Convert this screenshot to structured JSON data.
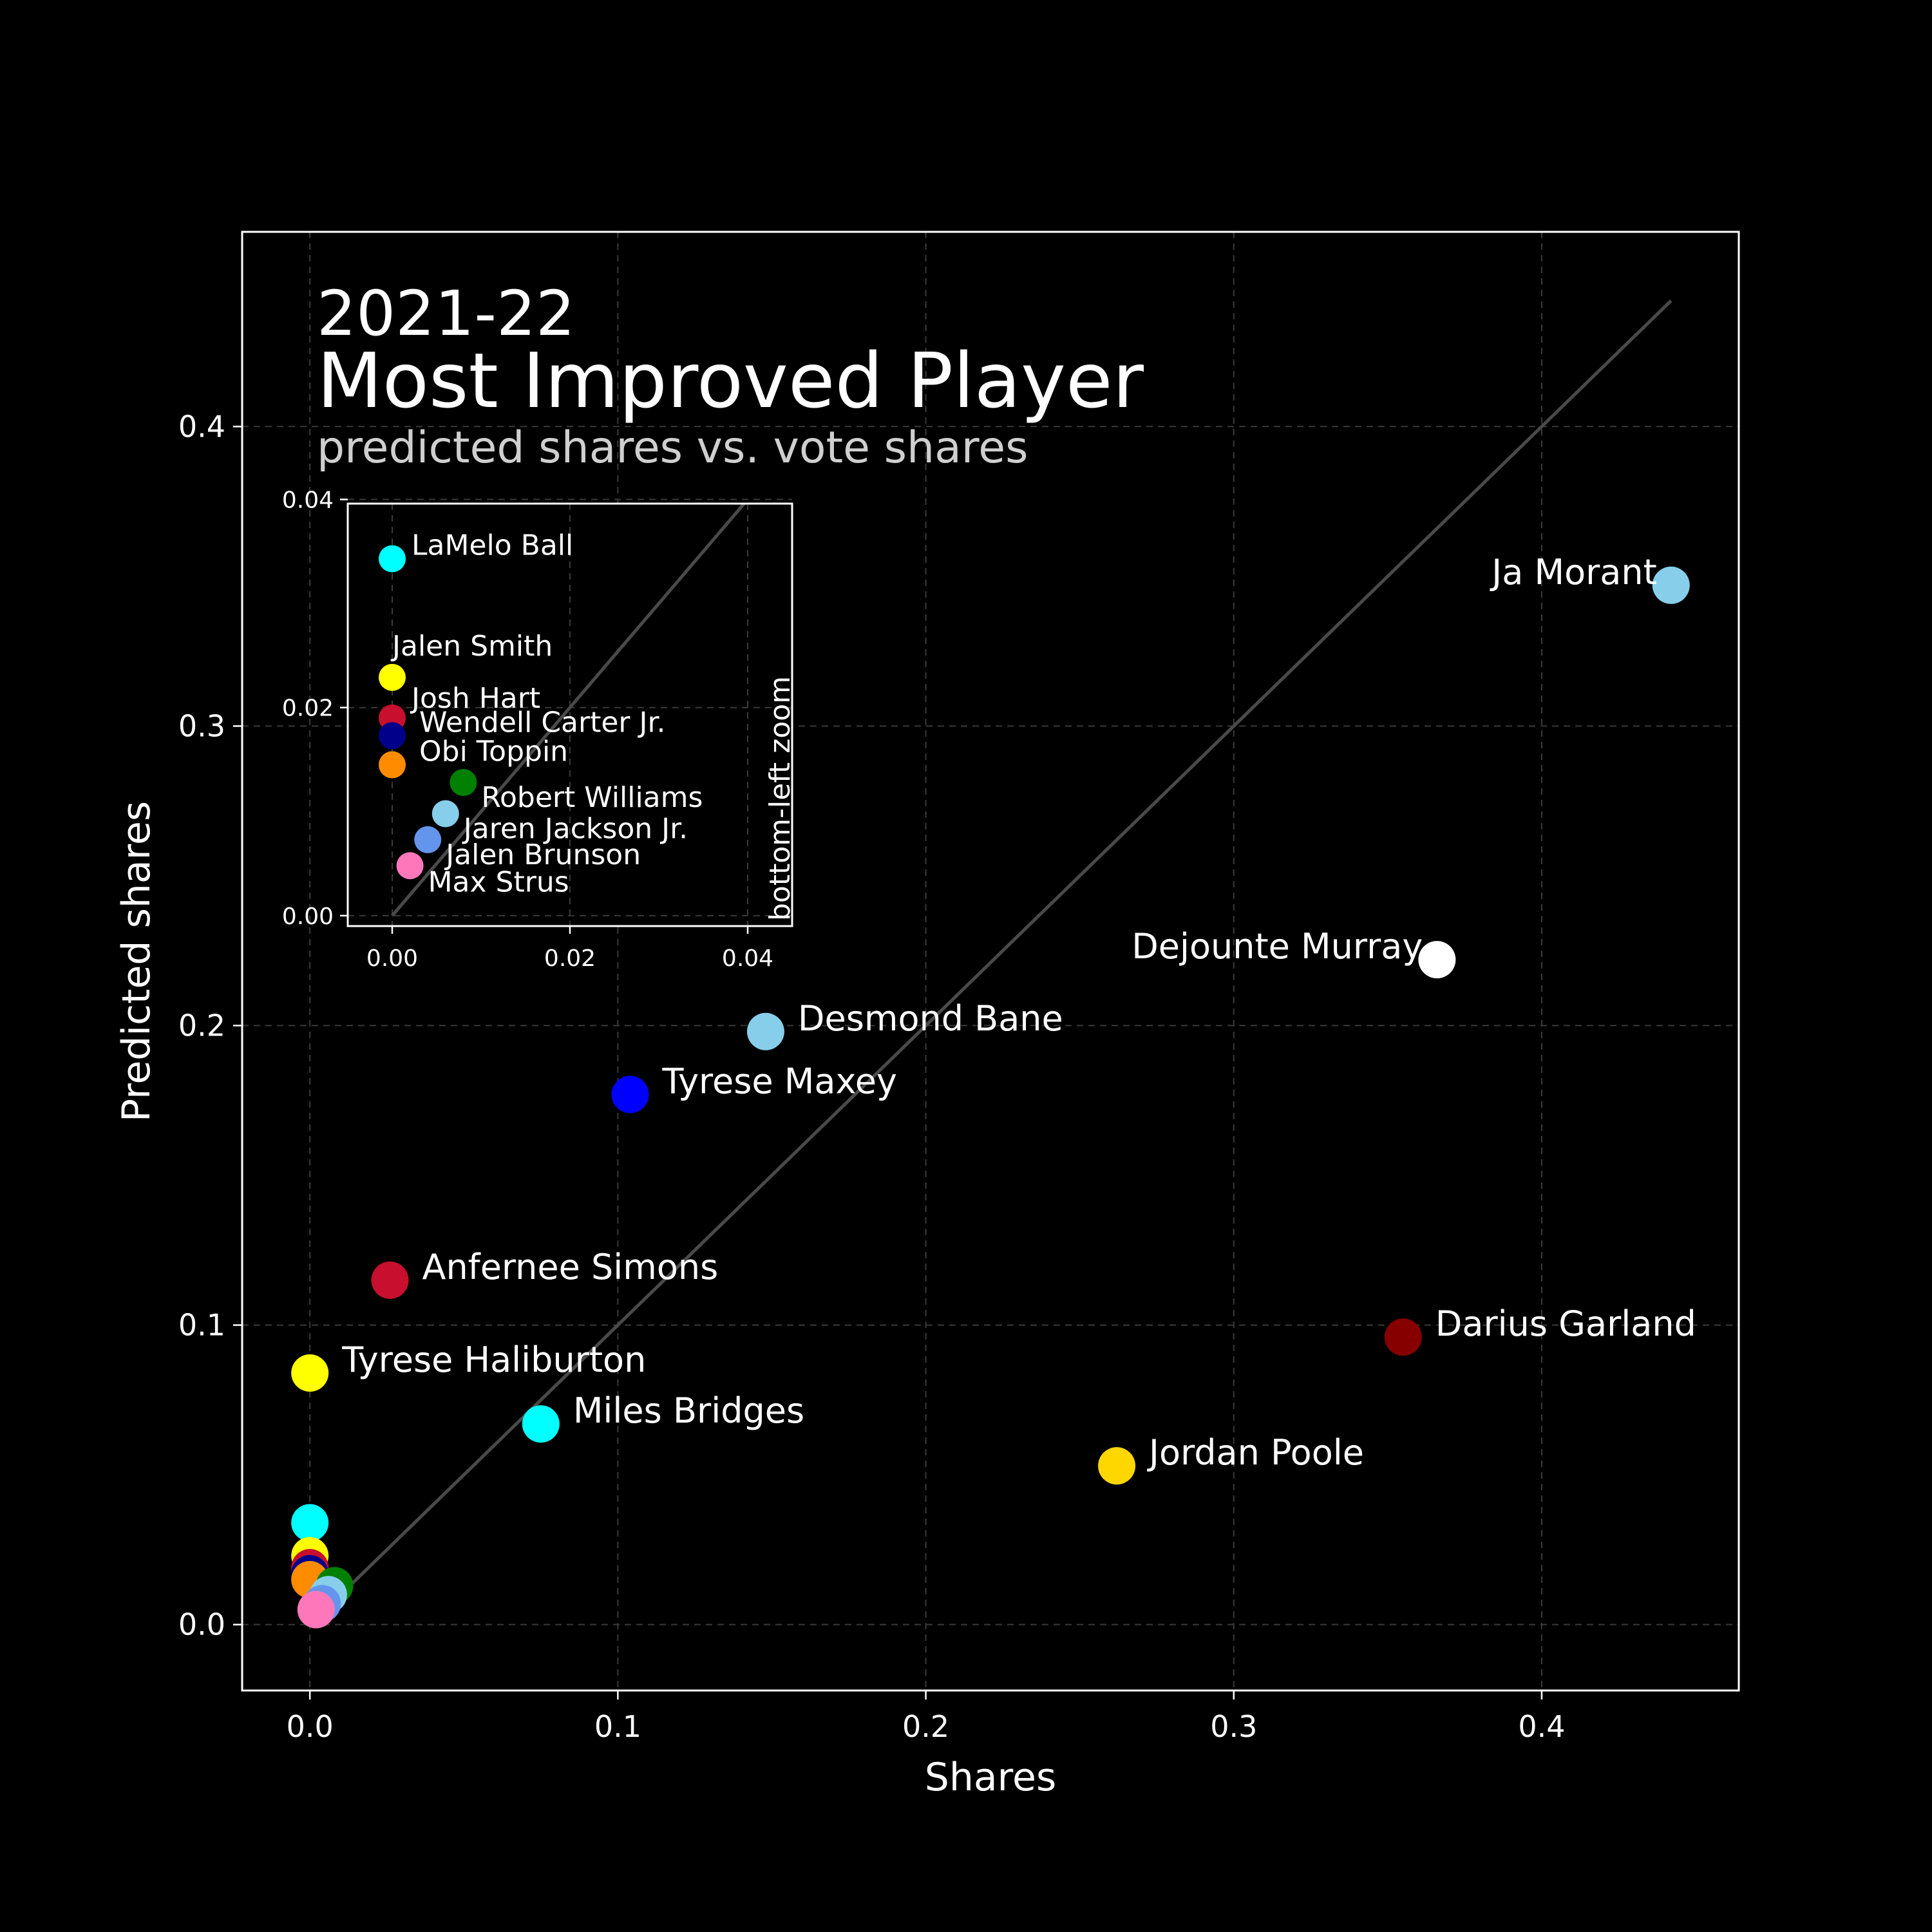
{
  "title": {
    "year": "2021-22",
    "main": "Most Improved Player",
    "subtitle": "predicted shares vs. vote shares"
  },
  "chart_data": [
    {
      "type": "scatter",
      "xlabel": "Shares",
      "ylabel": "Predicted shares",
      "xlim": [
        -0.022,
        0.464
      ],
      "ylim": [
        -0.022,
        0.465
      ],
      "x_ticks": [
        "0.0",
        "0.1",
        "0.2",
        "0.3",
        "0.4"
      ],
      "y_ticks": [
        "0.0",
        "0.1",
        "0.2",
        "0.3",
        "0.4"
      ],
      "grid": true,
      "reference_line": "y = x",
      "points": [
        {
          "name": "Ja Morant",
          "x": 0.442,
          "y": 0.347,
          "color": "#87CEEB",
          "label_side": "left"
        },
        {
          "name": "Dejounte Murray",
          "x": 0.366,
          "y": 0.222,
          "color": "#FFFFFF",
          "label_side": "left"
        },
        {
          "name": "Desmond Bane",
          "x": 0.148,
          "y": 0.198,
          "color": "#87CEEB",
          "label_side": "right"
        },
        {
          "name": "Tyrese Maxey",
          "x": 0.104,
          "y": 0.177,
          "color": "#0000FF",
          "label_side": "right"
        },
        {
          "name": "Anfernee Simons",
          "x": 0.026,
          "y": 0.115,
          "color": "#C8102E",
          "label_side": "right"
        },
        {
          "name": "Darius Garland",
          "x": 0.355,
          "y": 0.096,
          "color": "#860000",
          "label_side": "right"
        },
        {
          "name": "Tyrese Haliburton",
          "x": 0.0,
          "y": 0.084,
          "color": "#FFFF00",
          "label_side": "right"
        },
        {
          "name": "Miles Bridges",
          "x": 0.075,
          "y": 0.067,
          "color": "#00FFFF",
          "label_side": "right"
        },
        {
          "name": "Jordan Poole",
          "x": 0.262,
          "y": 0.053,
          "color": "#FFD700",
          "label_side": "right"
        },
        {
          "name": "LaMelo Ball",
          "x": 0.0,
          "y": 0.034,
          "color": "#00FFFF",
          "label_side": "none"
        },
        {
          "name": "Jalen Smith",
          "x": 0.0,
          "y": 0.023,
          "color": "#FFFF00",
          "label_side": "none"
        },
        {
          "name": "Josh Hart",
          "x": 0.0,
          "y": 0.019,
          "color": "#C8102E",
          "label_side": "none"
        },
        {
          "name": "Wendell Carter Jr.",
          "x": 0.0,
          "y": 0.017,
          "color": "#00008B",
          "label_side": "none"
        },
        {
          "name": "Obi Toppin",
          "x": 0.0,
          "y": 0.015,
          "color": "#FF8C00",
          "label_side": "none"
        },
        {
          "name": "Robert Williams",
          "x": 0.008,
          "y": 0.013,
          "color": "#008000",
          "label_side": "none"
        },
        {
          "name": "Jaren Jackson Jr.",
          "x": 0.006,
          "y": 0.01,
          "color": "#87CEEB",
          "label_side": "none"
        },
        {
          "name": "Jalen Brunson",
          "x": 0.004,
          "y": 0.007,
          "color": "#6495ED",
          "label_side": "none"
        },
        {
          "name": "Max Strus",
          "x": 0.002,
          "y": 0.005,
          "color": "#FF77BB",
          "label_side": "none"
        }
      ]
    },
    {
      "type": "scatter",
      "inset_label": "bottom-left zoom",
      "xlim": [
        -0.005,
        0.045
      ],
      "ylim": [
        -0.001,
        0.0396
      ],
      "x_ticks": [
        "0.00",
        "0.02",
        "0.04"
      ],
      "y_ticks": [
        "0.00",
        "0.02",
        "0.04"
      ],
      "grid": true,
      "reference_line": "y = x",
      "points": [
        {
          "name": "LaMelo Ball",
          "x": 0.0,
          "y": 0.0343,
          "color": "#00FFFF",
          "label": "LaMelo Ball"
        },
        {
          "name": "Jalen Smith",
          "x": 0.0,
          "y": 0.0229,
          "color": "#FFFF00",
          "label": "Jalen Smith"
        },
        {
          "name": "Josh Hart",
          "x": 0.0,
          "y": 0.019,
          "color": "#C8102E",
          "label": "Josh Hart"
        },
        {
          "name": "Wendell Carter Jr.",
          "x": 0.0,
          "y": 0.0173,
          "color": "#00008B",
          "label": "Wendell Carter Jr."
        },
        {
          "name": "Obi Toppin",
          "x": 0.0,
          "y": 0.0145,
          "color": "#FF8C00",
          "label": "Obi Toppin"
        },
        {
          "name": "Robert Williams",
          "x": 0.008,
          "y": 0.0128,
          "color": "#008000",
          "label": "Robert Williams"
        },
        {
          "name": "Jaren Jackson Jr.",
          "x": 0.006,
          "y": 0.0098,
          "color": "#87CEEB",
          "label": "Jaren Jackson Jr."
        },
        {
          "name": "Jalen Brunson",
          "x": 0.004,
          "y": 0.0073,
          "color": "#6495ED",
          "label": "Jalen Brunson"
        },
        {
          "name": "Max Strus",
          "x": 0.002,
          "y": 0.0048,
          "color": "#FF77BB",
          "label": "Max Strus"
        }
      ]
    }
  ]
}
